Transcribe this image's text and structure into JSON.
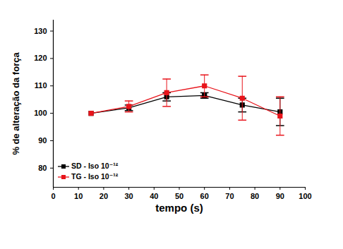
{
  "chart_data": {
    "type": "line",
    "x_label": "tempo (s)",
    "y_label": "% de alteração da força",
    "x": [
      15,
      30,
      45,
      60,
      75,
      90
    ],
    "series": [
      {
        "name": "SD - Iso 10⁻¹²",
        "color": "#000000",
        "marker": "square",
        "values": [
          100,
          102,
          106,
          106.5,
          103,
          100.5
        ],
        "errors": [
          0,
          1,
          1.5,
          1,
          2.5,
          5
        ]
      },
      {
        "name": "TG - Iso 10⁻¹²",
        "color": "#e8141b",
        "marker": "square",
        "values": [
          100,
          102.5,
          107.5,
          110,
          105.5,
          99
        ],
        "errors": [
          0,
          2,
          5,
          4,
          8,
          7
        ]
      }
    ],
    "xlim": [
      0,
      100
    ],
    "xticks": [
      0,
      10,
      20,
      30,
      40,
      50,
      60,
      70,
      80,
      90,
      100
    ],
    "ylim": [
      73,
      134
    ],
    "yticks": [
      80,
      90,
      100,
      110,
      120,
      130
    ],
    "legend": "lower left",
    "grid": false
  }
}
